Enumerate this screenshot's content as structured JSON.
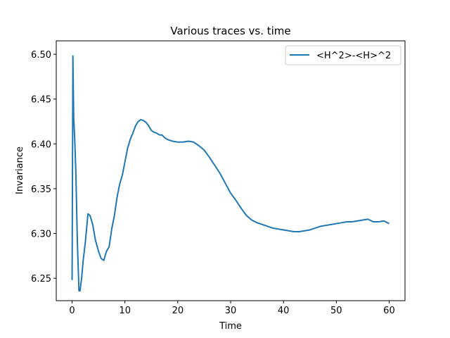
{
  "chart_data": {
    "type": "line",
    "title": "Various traces vs. time",
    "xlabel": "Time",
    "ylabel": "Invariance",
    "xlim": [
      -3,
      63
    ],
    "ylim": [
      6.225,
      6.515
    ],
    "xticks": [
      0,
      10,
      20,
      30,
      40,
      50,
      60
    ],
    "xtick_labels": [
      "0",
      "10",
      "20",
      "30",
      "40",
      "50",
      "60"
    ],
    "yticks": [
      6.25,
      6.3,
      6.35,
      6.4,
      6.45,
      6.5
    ],
    "ytick_labels": [
      "6.25",
      "6.30",
      "6.35",
      "6.40",
      "6.45",
      "6.50"
    ],
    "grid": false,
    "legend_position": "top-right",
    "series_color": "#1f77b4",
    "series": [
      {
        "name": "<H^2>-<H>^2",
        "x": [
          0,
          0.15,
          0.3,
          0.5,
          0.7,
          1.0,
          1.3,
          1.5,
          1.8,
          2.1,
          2.5,
          3.0,
          3.4,
          3.9,
          4.4,
          5.0,
          5.5,
          6.0,
          6.5,
          7.0,
          7.5,
          8.0,
          8.5,
          9.0,
          9.5,
          10.0,
          10.5,
          11.0,
          11.5,
          12.0,
          12.5,
          13.0,
          13.5,
          14.0,
          14.5,
          15.0,
          15.5,
          16.0,
          16.5,
          17.0,
          17.5,
          18.0,
          19.0,
          20.0,
          21.0,
          22.0,
          23.0,
          24.0,
          25.0,
          26.0,
          27.0,
          28.0,
          29.0,
          30.0,
          31.0,
          32.0,
          33.0,
          34.0,
          35.0,
          36.0,
          37.0,
          38.0,
          39.0,
          40.0,
          41.0,
          42.0,
          43.0,
          44.0,
          45.0,
          46.0,
          47.0,
          48.0,
          49.0,
          50.0,
          51.0,
          52.0,
          53.0,
          54.0,
          55.0,
          56.0,
          57.0,
          58.0,
          59.0,
          60.0
        ],
        "values": [
          6.248,
          6.498,
          6.43,
          6.405,
          6.37,
          6.29,
          6.236,
          6.236,
          6.25,
          6.27,
          6.29,
          6.322,
          6.32,
          6.31,
          6.293,
          6.28,
          6.272,
          6.27,
          6.28,
          6.285,
          6.305,
          6.32,
          6.34,
          6.355,
          6.365,
          6.38,
          6.395,
          6.405,
          6.412,
          6.42,
          6.425,
          6.427,
          6.426,
          6.424,
          6.42,
          6.415,
          6.413,
          6.412,
          6.41,
          6.41,
          6.407,
          6.405,
          6.403,
          6.402,
          6.402,
          6.403,
          6.402,
          6.398,
          6.393,
          6.385,
          6.376,
          6.367,
          6.356,
          6.345,
          6.337,
          6.328,
          6.32,
          6.315,
          6.312,
          6.31,
          6.308,
          6.306,
          6.305,
          6.304,
          6.303,
          6.302,
          6.302,
          6.303,
          6.304,
          6.306,
          6.308,
          6.309,
          6.31,
          6.311,
          6.312,
          6.313,
          6.313,
          6.314,
          6.315,
          6.316,
          6.313,
          6.313,
          6.314,
          6.311
        ]
      }
    ]
  }
}
